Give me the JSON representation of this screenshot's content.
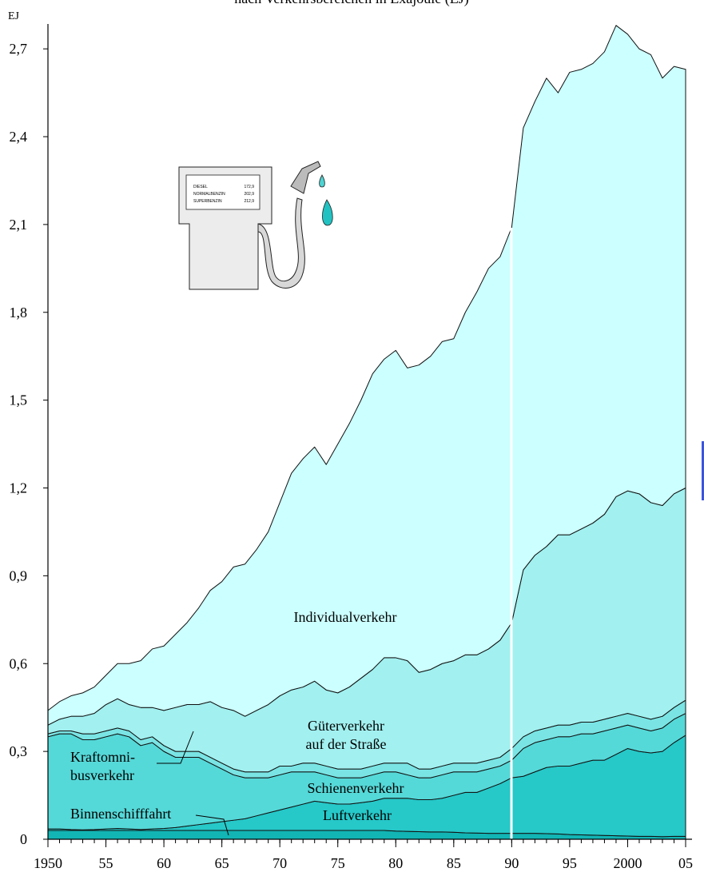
{
  "chart_data": {
    "type": "stacked_area",
    "subtitle": "nach Verkehrsbereichen in Exajoule (EJ)",
    "y_unit": "EJ",
    "x": [
      1950,
      1951,
      1952,
      1953,
      1954,
      1955,
      1956,
      1957,
      1958,
      1959,
      1960,
      1961,
      1962,
      1963,
      1964,
      1965,
      1966,
      1967,
      1968,
      1969,
      1970,
      1971,
      1972,
      1973,
      1974,
      1975,
      1976,
      1977,
      1978,
      1979,
      1980,
      1981,
      1982,
      1983,
      1984,
      1985,
      1986,
      1987,
      1988,
      1989,
      1990,
      1991,
      1992,
      1993,
      1994,
      1995,
      1996,
      1997,
      1998,
      1999,
      2000,
      2001,
      2002,
      2003,
      2004,
      2005
    ],
    "xlim": [
      1950,
      2005
    ],
    "xticks": [
      1950,
      {
        "value": 1955,
        "label": "55"
      },
      {
        "value": 1960,
        "label": "60"
      },
      {
        "value": 1965,
        "label": "65"
      },
      {
        "value": 1970,
        "label": "70"
      },
      {
        "value": 1975,
        "label": "75"
      },
      {
        "value": 1980,
        "label": "80"
      },
      {
        "value": 1985,
        "label": "85"
      },
      {
        "value": 1990,
        "label": "90"
      },
      {
        "value": 1995,
        "label": "95"
      },
      2000,
      {
        "value": 2005,
        "label": "05"
      }
    ],
    "ylim": [
      0,
      2.785
    ],
    "yticks": [
      0,
      {
        "value": 0.3,
        "label": "0,3"
      },
      {
        "value": 0.6,
        "label": "0,6"
      },
      {
        "value": 0.9,
        "label": "0,9"
      },
      {
        "value": 1.2,
        "label": "1,2"
      },
      {
        "value": 1.5,
        "label": "1,5"
      },
      {
        "value": 1.8,
        "label": "1,8"
      },
      {
        "value": 2.1,
        "label": "2,1"
      },
      {
        "value": 2.4,
        "label": "2,4"
      },
      {
        "value": 2.7,
        "label": "2,7"
      }
    ],
    "series": [
      {
        "name": [
          "Binnenschifffahrt"
        ],
        "color": "#12b4b4",
        "values": [
          0.03,
          0.03,
          0.03,
          0.03,
          0.03,
          0.03,
          0.03,
          0.03,
          0.03,
          0.03,
          0.03,
          0.03,
          0.03,
          0.03,
          0.03,
          0.03,
          0.03,
          0.03,
          0.03,
          0.03,
          0.03,
          0.03,
          0.03,
          0.03,
          0.03,
          0.03,
          0.03,
          0.03,
          0.03,
          0.03,
          0.028,
          0.027,
          0.026,
          0.025,
          0.025,
          0.024,
          0.022,
          0.021,
          0.02,
          0.02,
          0.02,
          0.02,
          0.02,
          0.019,
          0.018,
          0.016,
          0.015,
          0.014,
          0.013,
          0.012,
          0.011,
          0.01,
          0.01,
          0.009,
          0.01,
          0.01
        ]
      },
      {
        "name": [
          "Luftverkehr"
        ],
        "color": "#26c8c8",
        "values": [
          0.005,
          0.005,
          0.003,
          0.002,
          0.003,
          0.005,
          0.007,
          0.005,
          0.003,
          0.005,
          0.007,
          0.01,
          0.015,
          0.02,
          0.025,
          0.03,
          0.035,
          0.04,
          0.05,
          0.06,
          0.07,
          0.08,
          0.09,
          0.1,
          0.095,
          0.09,
          0.09,
          0.095,
          0.1,
          0.11,
          0.112,
          0.113,
          0.109,
          0.11,
          0.115,
          0.126,
          0.138,
          0.139,
          0.155,
          0.17,
          0.19,
          0.195,
          0.21,
          0.226,
          0.232,
          0.234,
          0.245,
          0.256,
          0.257,
          0.278,
          0.299,
          0.29,
          0.285,
          0.291,
          0.32,
          0.345
        ]
      },
      {
        "name": [
          "Schienenverkehr"
        ],
        "color": "#55d8d8",
        "values": [
          0.315,
          0.325,
          0.327,
          0.308,
          0.307,
          0.315,
          0.323,
          0.315,
          0.287,
          0.295,
          0.263,
          0.24,
          0.235,
          0.23,
          0.205,
          0.18,
          0.155,
          0.14,
          0.13,
          0.12,
          0.12,
          0.12,
          0.11,
          0.1,
          0.095,
          0.09,
          0.09,
          0.085,
          0.09,
          0.09,
          0.09,
          0.08,
          0.075,
          0.075,
          0.08,
          0.08,
          0.07,
          0.07,
          0.065,
          0.06,
          0.06,
          0.095,
          0.1,
          0.095,
          0.1,
          0.1,
          0.1,
          0.09,
          0.1,
          0.09,
          0.08,
          0.08,
          0.075,
          0.08,
          0.08,
          0.075
        ]
      },
      {
        "name": [
          "Kraftomni-",
          "busverkehr"
        ],
        "color": "#7ae4e4",
        "values": [
          0.01,
          0.01,
          0.01,
          0.02,
          0.02,
          0.02,
          0.02,
          0.02,
          0.02,
          0.02,
          0.02,
          0.02,
          0.02,
          0.02,
          0.02,
          0.02,
          0.02,
          0.02,
          0.02,
          0.02,
          0.03,
          0.02,
          0.03,
          0.03,
          0.03,
          0.03,
          0.03,
          0.03,
          0.03,
          0.03,
          0.03,
          0.04,
          0.03,
          0.03,
          0.03,
          0.03,
          0.03,
          0.03,
          0.03,
          0.03,
          0.04,
          0.04,
          0.04,
          0.04,
          0.04,
          0.04,
          0.04,
          0.04,
          0.04,
          0.04,
          0.04,
          0.04,
          0.04,
          0.04,
          0.04,
          0.045
        ]
      },
      {
        "name": [
          "Güterverkehr",
          "auf der Straße"
        ],
        "color": "#a2f0f0",
        "values": [
          0.03,
          0.04,
          0.05,
          0.06,
          0.07,
          0.09,
          0.1,
          0.09,
          0.11,
          0.1,
          0.12,
          0.15,
          0.16,
          0.16,
          0.19,
          0.19,
          0.2,
          0.19,
          0.21,
          0.23,
          0.24,
          0.26,
          0.26,
          0.28,
          0.26,
          0.26,
          0.28,
          0.31,
          0.33,
          0.36,
          0.36,
          0.35,
          0.33,
          0.34,
          0.35,
          0.35,
          0.37,
          0.37,
          0.38,
          0.4,
          0.43,
          0.57,
          0.6,
          0.62,
          0.65,
          0.65,
          0.66,
          0.68,
          0.7,
          0.75,
          0.76,
          0.76,
          0.74,
          0.72,
          0.73,
          0.725
        ]
      },
      {
        "name": [
          "Individualverkehr"
        ],
        "color": "#ccffff",
        "values": [
          0.05,
          0.06,
          0.07,
          0.08,
          0.09,
          0.1,
          0.12,
          0.14,
          0.16,
          0.2,
          0.22,
          0.25,
          0.28,
          0.33,
          0.38,
          0.43,
          0.49,
          0.52,
          0.55,
          0.59,
          0.66,
          0.74,
          0.78,
          0.8,
          0.77,
          0.85,
          0.9,
          0.95,
          1.01,
          1.02,
          1.05,
          1.0,
          1.05,
          1.07,
          1.1,
          1.1,
          1.17,
          1.24,
          1.3,
          1.31,
          1.35,
          1.51,
          1.55,
          1.6,
          1.51,
          1.58,
          1.57,
          1.57,
          1.58,
          1.61,
          1.56,
          1.52,
          1.53,
          1.46,
          1.46,
          1.43
        ]
      }
    ],
    "pump_sign": [
      [
        "DIESEL",
        "172,9"
      ],
      [
        "NORMALBENZIN",
        "202,9"
      ],
      [
        "SUPERBENZIN",
        "212,9"
      ]
    ]
  }
}
